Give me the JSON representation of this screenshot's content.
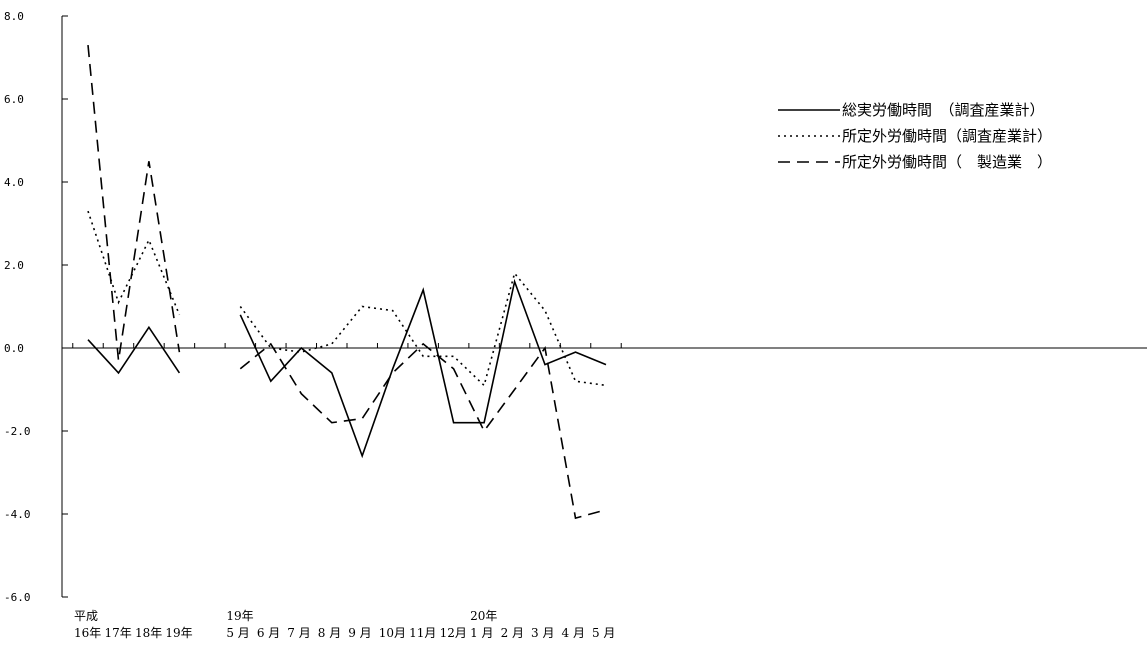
{
  "chart_data": {
    "type": "line",
    "x_labels": [
      {
        "top": "平成",
        "bottom": "16年"
      },
      {
        "top": "",
        "bottom": "17年"
      },
      {
        "top": "",
        "bottom": "18年"
      },
      {
        "top": "",
        "bottom": "19年"
      },
      {
        "top": "",
        "bottom": ""
      },
      {
        "top": "19年",
        "bottom": "5 月"
      },
      {
        "top": "",
        "bottom": "6 月"
      },
      {
        "top": "",
        "bottom": "7 月"
      },
      {
        "top": "",
        "bottom": "8 月"
      },
      {
        "top": "",
        "bottom": "9 月"
      },
      {
        "top": "",
        "bottom": "10月"
      },
      {
        "top": "",
        "bottom": "11月"
      },
      {
        "top": "",
        "bottom": "12月"
      },
      {
        "top": "20年",
        "bottom": "1 月"
      },
      {
        "top": "",
        "bottom": "2 月"
      },
      {
        "top": "",
        "bottom": "3 月"
      },
      {
        "top": "",
        "bottom": "4 月"
      },
      {
        "top": "",
        "bottom": "5 月"
      }
    ],
    "y_ticks": [
      "8.0",
      "6.0",
      "4.0",
      "2.0",
      "0.0",
      "-2.0",
      "-4.0",
      "-6.0"
    ],
    "ylim": [
      -6,
      8
    ],
    "series": [
      {
        "name": "総実労働時間　（調査産業計）",
        "style": "solid",
        "values": [
          0.2,
          -0.6,
          0.5,
          -0.6,
          null,
          0.8,
          -0.8,
          0.0,
          -0.6,
          -2.6,
          -0.5,
          1.4,
          -1.8,
          -1.8,
          1.6,
          -0.4,
          -0.1,
          -0.4
        ]
      },
      {
        "name": "所定外労働時間（調査産業計）",
        "style": "dotted",
        "values": [
          3.3,
          1.1,
          2.6,
          0.8,
          null,
          1.0,
          0.0,
          -0.1,
          0.1,
          1.0,
          0.9,
          -0.2,
          -0.2,
          -0.9,
          1.8,
          0.9,
          -0.8,
          -0.9
        ]
      },
      {
        "name": "所定外労働時間（　製造業　）",
        "style": "dashed",
        "values": [
          7.3,
          -0.3,
          4.5,
          -0.1,
          null,
          -0.5,
          0.1,
          -1.1,
          -1.8,
          -1.7,
          -0.6,
          0.1,
          -0.5,
          -2.0,
          -1.0,
          0.0,
          -4.1,
          -3.9
        ]
      }
    ],
    "legend_position": "top-right",
    "colors": {
      "line": "#000000",
      "axis": "#000000"
    }
  }
}
